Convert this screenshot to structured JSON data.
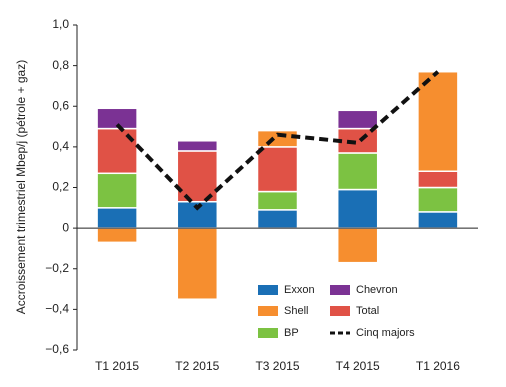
{
  "chart_data": {
    "type": "stacked-bar",
    "y_label": "Accroissement trimestriel Mbep/j (pétrole + gaz)",
    "categories": [
      "T1 2015",
      "T2 2015",
      "T3 2015",
      "T4 2015",
      "T1 2016"
    ],
    "series": [
      {
        "name": "Exxon",
        "color": "#1a6fb5",
        "values": [
          0.1,
          0.13,
          0.09,
          0.19,
          0.08
        ]
      },
      {
        "name": "BP",
        "color": "#7cc242",
        "values": [
          0.17,
          0,
          0.09,
          0.18,
          0.12
        ]
      },
      {
        "name": "Total",
        "color": "#e05246",
        "values": [
          0.22,
          0.25,
          0.22,
          0.12,
          0.08
        ]
      },
      {
        "name": "Shell",
        "color": "#f68e2f",
        "values": [
          -0.07,
          -0.35,
          0.08,
          -0.17,
          0.49
        ]
      },
      {
        "name": "Chevron",
        "color": "#7b3294",
        "values": [
          0.1,
          0.05,
          0,
          0.09,
          0
        ]
      }
    ],
    "line": {
      "name": "Cinq majors",
      "color": "#111111",
      "values": [
        0.51,
        0.1,
        0.46,
        0.42,
        0.77
      ]
    },
    "ylim": [
      -0.6,
      1.0
    ],
    "yticks": [
      {
        "value": -0.6,
        "label": "−0,6"
      },
      {
        "value": -0.4,
        "label": "−0,4"
      },
      {
        "value": -0.2,
        "label": "−0,2"
      },
      0,
      {
        "value": 0.2,
        "label": "0,2"
      },
      {
        "value": 0.4,
        "label": "0,4"
      },
      {
        "value": 0.6,
        "label": "0,6"
      },
      {
        "value": 0.8,
        "label": "0,8"
      },
      {
        "value": 1.0,
        "label": "1,0"
      }
    ]
  }
}
